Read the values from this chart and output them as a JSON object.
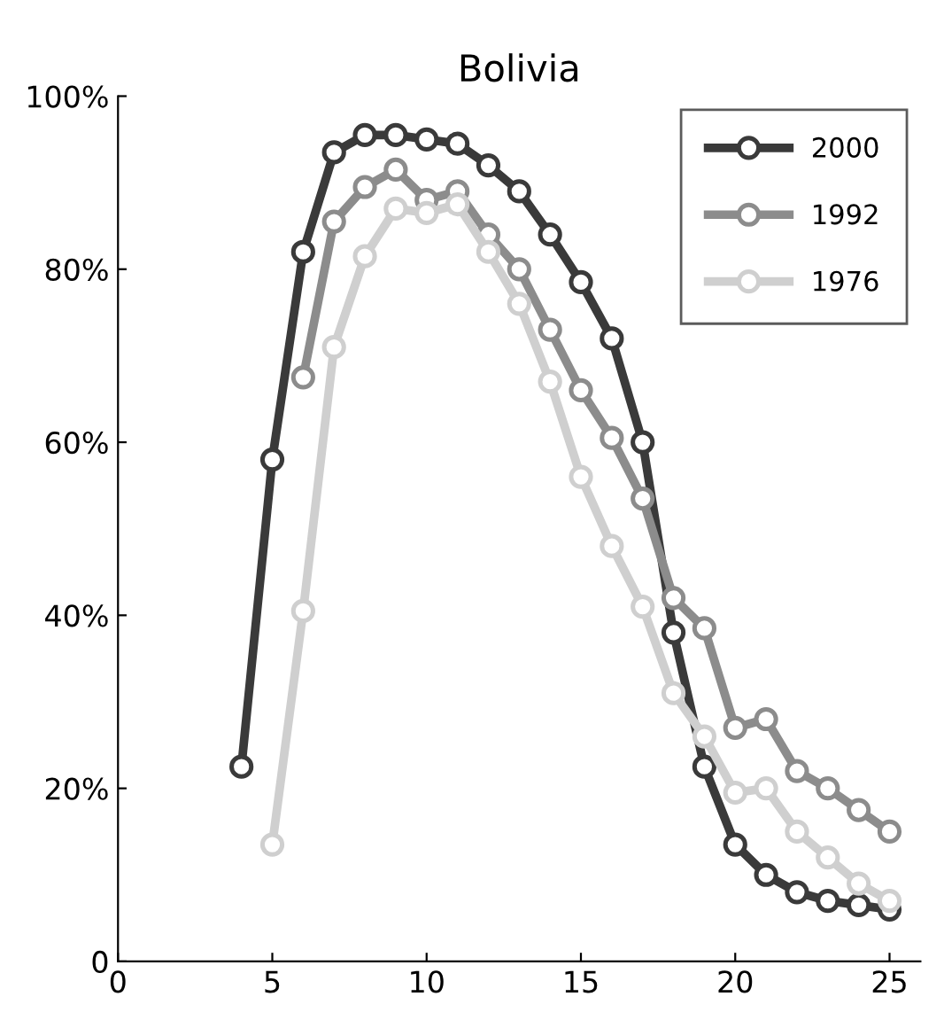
{
  "chart_data": {
    "type": "line",
    "title": "Bolivia",
    "x": [
      4,
      5,
      6,
      7,
      8,
      9,
      10,
      11,
      12,
      13,
      14,
      15,
      16,
      17,
      18,
      19,
      20,
      21,
      22,
      23,
      24,
      25
    ],
    "series": [
      {
        "name": "2000",
        "color": "#3a3a3a",
        "values": [
          22.5,
          58,
          82,
          93.5,
          95.5,
          95.5,
          95,
          94.5,
          92,
          89,
          84,
          78.5,
          72,
          60,
          38,
          22.5,
          13.5,
          10,
          8,
          7,
          6.5,
          6
        ]
      },
      {
        "name": "1992",
        "color": "#8c8c8c",
        "values": [
          null,
          null,
          67.5,
          85.5,
          89.5,
          91.5,
          88,
          89,
          84,
          80,
          73,
          66,
          60.5,
          53.5,
          42,
          38.5,
          27,
          28,
          22,
          20,
          17.5,
          15
        ]
      },
      {
        "name": "1976",
        "color": "#cfcfcf",
        "values": [
          null,
          13.5,
          40.5,
          71,
          81.5,
          87,
          86.5,
          87.5,
          82,
          76,
          67,
          56,
          48,
          41,
          31,
          26,
          19.5,
          20,
          15,
          12,
          9,
          7
        ]
      }
    ],
    "xlim": [
      0,
      26
    ],
    "xticks": [
      0,
      5,
      10,
      15,
      20,
      25
    ],
    "ylim": [
      0,
      100
    ],
    "yticks": [
      0,
      {
        "value": 20,
        "label": "20%"
      },
      {
        "value": 40,
        "label": "40%"
      },
      {
        "value": 60,
        "label": "60%"
      },
      {
        "value": 80,
        "label": "80%"
      },
      {
        "value": 100,
        "label": "100%"
      }
    ],
    "marker": "circle",
    "line_style": "solid",
    "grid": false,
    "legend": "top right"
  }
}
